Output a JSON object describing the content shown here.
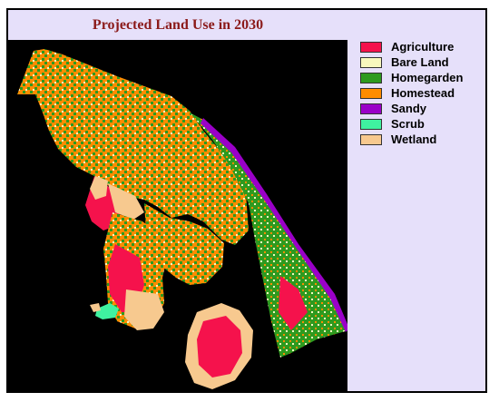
{
  "title": "Projected Land Use in 2030",
  "legend": {
    "items": [
      {
        "label": "Agriculture",
        "color": "#f5124c"
      },
      {
        "label": "Bare Land",
        "color": "#f7f7bd"
      },
      {
        "label": "Homegarden",
        "color": "#2e9a1f"
      },
      {
        "label": "Homestead",
        "color": "#ff8c00"
      },
      {
        "label": "Sandy",
        "color": "#9a00c8"
      },
      {
        "label": "Scrub",
        "color": "#3ff2a0"
      },
      {
        "label": "Wetland",
        "color": "#f7c98f"
      }
    ]
  },
  "colors": {
    "background": "#000000",
    "panel": "#e6e0fa",
    "title": "#8b1a1a"
  }
}
